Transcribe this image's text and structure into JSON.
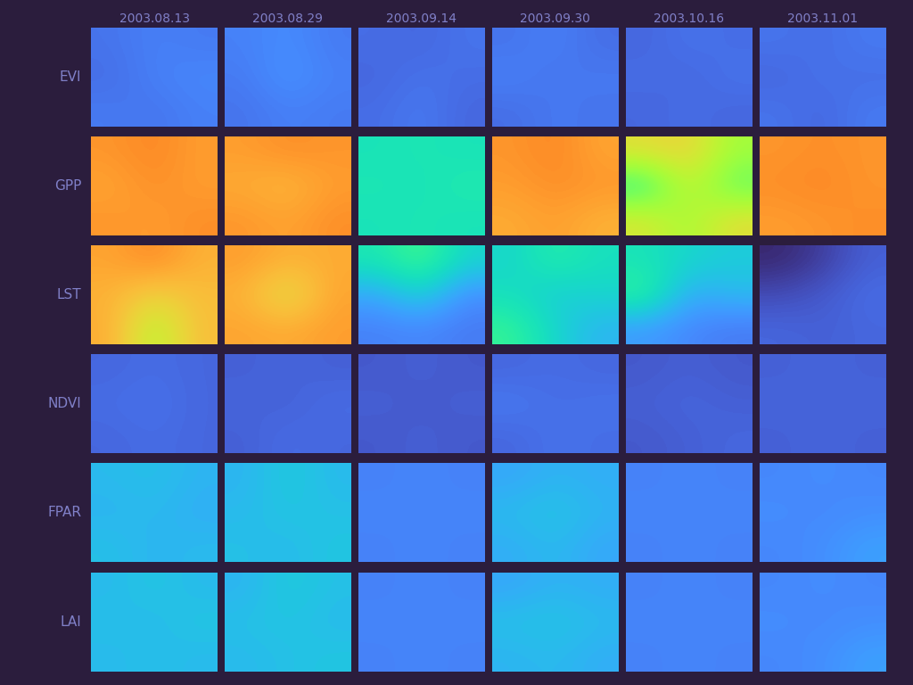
{
  "chart_data": {
    "type": "heatmap",
    "columns": [
      "2003.08.13",
      "2003.08.29",
      "2003.09.14",
      "2003.09.30",
      "2003.10.16",
      "2003.11.01"
    ],
    "rows": [
      "EVI",
      "GPP",
      "LST",
      "NDVI",
      "FPAR",
      "LAI"
    ],
    "color_range": [
      0,
      1
    ],
    "tick_labels": false,
    "cells": [
      [
        [
          [
            0.14,
            0.16,
            0.15
          ],
          [
            0.13,
            0.16,
            0.17
          ],
          [
            0.15,
            0.14,
            0.16
          ]
        ],
        [
          [
            0.16,
            0.18,
            0.15
          ],
          [
            0.15,
            0.19,
            0.16
          ],
          [
            0.14,
            0.16,
            0.15
          ]
        ],
        [
          [
            0.13,
            0.12,
            0.14
          ],
          [
            0.12,
            0.14,
            0.13
          ],
          [
            0.13,
            0.15,
            0.12
          ]
        ],
        [
          [
            0.14,
            0.16,
            0.13
          ],
          [
            0.16,
            0.14,
            0.15
          ],
          [
            0.13,
            0.15,
            0.14
          ]
        ],
        [
          [
            0.12,
            0.14,
            0.13
          ],
          [
            0.13,
            0.12,
            0.14
          ],
          [
            0.12,
            0.13,
            0.12
          ]
        ],
        [
          [
            0.14,
            0.13,
            0.15
          ],
          [
            0.12,
            0.14,
            0.13
          ],
          [
            0.14,
            0.12,
            0.15
          ]
        ]
      ],
      [
        [
          [
            0.72,
            0.74,
            0.71
          ],
          [
            0.7,
            0.73,
            0.71
          ],
          [
            0.72,
            0.71,
            0.73
          ]
        ],
        [
          [
            0.71,
            0.73,
            0.72
          ],
          [
            0.69,
            0.67,
            0.71
          ],
          [
            0.72,
            0.7,
            0.73
          ]
        ],
        [
          [
            0.33,
            0.34,
            0.33
          ],
          [
            0.34,
            0.33,
            0.35
          ],
          [
            0.33,
            0.34,
            0.33
          ]
        ],
        [
          [
            0.72,
            0.74,
            0.7
          ],
          [
            0.71,
            0.73,
            0.72
          ],
          [
            0.69,
            0.71,
            0.68
          ]
        ],
        [
          [
            0.6,
            0.62,
            0.5
          ],
          [
            0.36,
            0.56,
            0.42
          ],
          [
            0.58,
            0.5,
            0.6
          ]
        ],
        [
          [
            0.72,
            0.73,
            0.72
          ],
          [
            0.73,
            0.74,
            0.72
          ],
          [
            0.71,
            0.72,
            0.73
          ]
        ]
      ],
      [
        [
          [
            0.7,
            0.74,
            0.68
          ],
          [
            0.68,
            0.62,
            0.66
          ],
          [
            0.69,
            0.52,
            0.66
          ]
        ],
        [
          [
            0.71,
            0.68,
            0.69
          ],
          [
            0.68,
            0.58,
            0.7
          ],
          [
            0.7,
            0.69,
            0.71
          ]
        ],
        [
          [
            0.34,
            0.4,
            0.3
          ],
          [
            0.22,
            0.3,
            0.18
          ],
          [
            0.16,
            0.17,
            0.15
          ]
        ],
        [
          [
            0.3,
            0.36,
            0.32
          ],
          [
            0.32,
            0.28,
            0.3
          ],
          [
            0.38,
            0.3,
            0.24
          ]
        ],
        [
          [
            0.33,
            0.3,
            0.28
          ],
          [
            0.38,
            0.22,
            0.25
          ],
          [
            0.2,
            0.17,
            0.15
          ]
        ],
        [
          [
            0.03,
            0.06,
            0.11
          ],
          [
            0.08,
            0.1,
            0.13
          ],
          [
            0.12,
            0.11,
            0.12
          ]
        ]
      ],
      [
        [
          [
            0.12,
            0.13,
            0.12
          ],
          [
            0.13,
            0.14,
            0.12
          ],
          [
            0.12,
            0.13,
            0.12
          ]
        ],
        [
          [
            0.11,
            0.12,
            0.11
          ],
          [
            0.12,
            0.11,
            0.13
          ],
          [
            0.11,
            0.13,
            0.12
          ]
        ],
        [
          [
            0.1,
            0.11,
            0.1
          ],
          [
            0.11,
            0.1,
            0.11
          ],
          [
            0.1,
            0.11,
            0.1
          ]
        ],
        [
          [
            0.12,
            0.13,
            0.12
          ],
          [
            0.15,
            0.13,
            0.14
          ],
          [
            0.12,
            0.14,
            0.13
          ]
        ],
        [
          [
            0.1,
            0.11,
            0.1
          ],
          [
            0.11,
            0.12,
            0.11
          ],
          [
            0.1,
            0.11,
            0.12
          ]
        ],
        [
          [
            0.11,
            0.12,
            0.11
          ],
          [
            0.12,
            0.11,
            0.12
          ],
          [
            0.11,
            0.12,
            0.11
          ]
        ]
      ],
      [
        [
          [
            0.25,
            0.26,
            0.24
          ],
          [
            0.24,
            0.25,
            0.23
          ],
          [
            0.26,
            0.24,
            0.25
          ]
        ],
        [
          [
            0.24,
            0.28,
            0.25
          ],
          [
            0.25,
            0.27,
            0.26
          ],
          [
            0.26,
            0.25,
            0.27
          ]
        ],
        [
          [
            0.16,
            0.17,
            0.16
          ],
          [
            0.17,
            0.16,
            0.17
          ],
          [
            0.16,
            0.17,
            0.16
          ]
        ],
        [
          [
            0.22,
            0.24,
            0.23
          ],
          [
            0.25,
            0.27,
            0.24
          ],
          [
            0.23,
            0.25,
            0.22
          ]
        ],
        [
          [
            0.16,
            0.17,
            0.16
          ],
          [
            0.17,
            0.16,
            0.17
          ],
          [
            0.16,
            0.17,
            0.16
          ]
        ],
        [
          [
            0.17,
            0.18,
            0.17
          ],
          [
            0.18,
            0.17,
            0.18
          ],
          [
            0.17,
            0.18,
            0.21
          ]
        ]
      ],
      [
        [
          [
            0.25,
            0.27,
            0.25
          ],
          [
            0.26,
            0.25,
            0.27
          ],
          [
            0.25,
            0.26,
            0.25
          ]
        ],
        [
          [
            0.24,
            0.28,
            0.26
          ],
          [
            0.26,
            0.27,
            0.25
          ],
          [
            0.25,
            0.26,
            0.27
          ]
        ],
        [
          [
            0.16,
            0.17,
            0.16
          ],
          [
            0.17,
            0.16,
            0.17
          ],
          [
            0.16,
            0.17,
            0.16
          ]
        ],
        [
          [
            0.22,
            0.24,
            0.23
          ],
          [
            0.26,
            0.27,
            0.25
          ],
          [
            0.24,
            0.25,
            0.23
          ]
        ],
        [
          [
            0.16,
            0.17,
            0.16
          ],
          [
            0.17,
            0.16,
            0.17
          ],
          [
            0.16,
            0.17,
            0.16
          ]
        ],
        [
          [
            0.17,
            0.18,
            0.17
          ],
          [
            0.18,
            0.17,
            0.18
          ],
          [
            0.17,
            0.18,
            0.21
          ]
        ]
      ]
    ]
  }
}
